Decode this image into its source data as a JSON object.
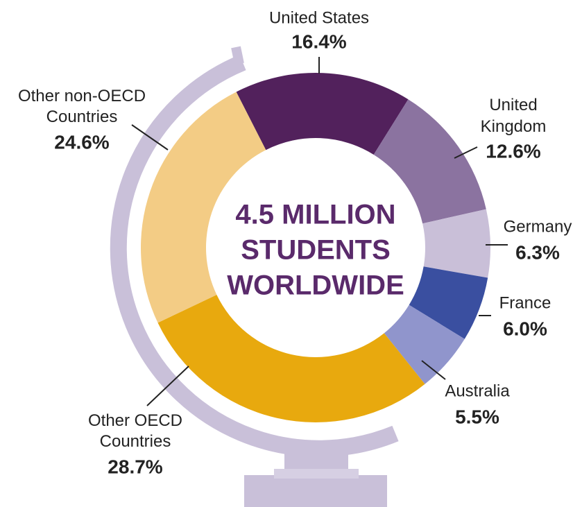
{
  "chart_data": {
    "type": "donut",
    "categories": [
      "United States",
      "United Kingdom",
      "Germany",
      "France",
      "Australia",
      "Other OECD Countries",
      "Other non-OECD Countries"
    ],
    "values": [
      16.4,
      12.6,
      6.3,
      6.0,
      5.5,
      28.7,
      24.6
    ],
    "value_labels": [
      "16.4%",
      "12.6%",
      "6.3%",
      "6.0%",
      "5.5%",
      "28.7%",
      "24.6%"
    ],
    "colors": [
      "#52215c",
      "#8b73a0",
      "#c9bfd8",
      "#3a4fa0",
      "#9095cc",
      "#e8a90e",
      "#f3cc85"
    ],
    "center_label": [
      "4.5 MILLION",
      "STUDENTS",
      "WORLDWIDE"
    ]
  }
}
